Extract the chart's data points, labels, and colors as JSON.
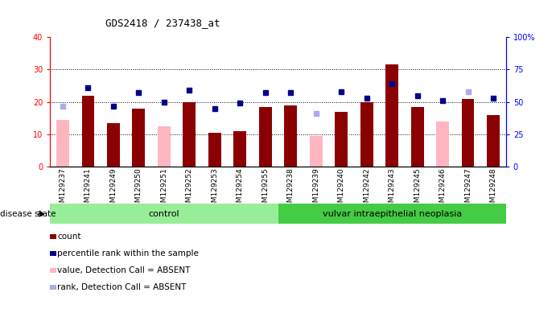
{
  "title": "GDS2418 / 237438_at",
  "samples": [
    "GSM129237",
    "GSM129241",
    "GSM129249",
    "GSM129250",
    "GSM129251",
    "GSM129252",
    "GSM129253",
    "GSM129254",
    "GSM129255",
    "GSM129238",
    "GSM129239",
    "GSM129240",
    "GSM129242",
    "GSM129243",
    "GSM129245",
    "GSM129246",
    "GSM129247",
    "GSM129248"
  ],
  "count_values": [
    0,
    22,
    13.5,
    18,
    0,
    20,
    10.5,
    11,
    18.5,
    19,
    0,
    17,
    20,
    31.5,
    18.5,
    0,
    21,
    16
  ],
  "absent_value": [
    14.5,
    0,
    0,
    0,
    12.5,
    0,
    0,
    0,
    0,
    0,
    9.5,
    0,
    0,
    0,
    0,
    14.0,
    0,
    0
  ],
  "percentile_values": [
    48,
    61,
    47,
    57,
    50,
    59,
    45,
    49,
    57,
    57,
    0,
    58,
    53,
    64,
    55,
    51,
    59,
    53
  ],
  "absent_rank": [
    47,
    0,
    0,
    0,
    0,
    0,
    0,
    0,
    0,
    0,
    41,
    0,
    0,
    0,
    0,
    0,
    58,
    0
  ],
  "count_is_absent": [
    true,
    false,
    false,
    false,
    true,
    false,
    false,
    false,
    false,
    false,
    true,
    false,
    false,
    false,
    false,
    true,
    false,
    false
  ],
  "pct_is_absent": [
    true,
    false,
    false,
    false,
    false,
    false,
    false,
    false,
    false,
    false,
    true,
    false,
    false,
    false,
    false,
    false,
    true,
    false
  ],
  "control_count": 9,
  "disease_count": 9,
  "group_labels": [
    "control",
    "vulvar intraepithelial neoplasia"
  ],
  "ylim_left": [
    0,
    40
  ],
  "ylim_right": [
    0,
    100
  ],
  "yticks_left": [
    0,
    10,
    20,
    30,
    40
  ],
  "yticks_right": [
    0,
    25,
    50,
    75,
    100
  ],
  "bar_color_dark_red": "#8B0000",
  "bar_color_pink": "#FFB6C1",
  "dot_color_dark_blue": "#00008B",
  "dot_color_light_blue": "#AAAAEE",
  "control_bg": "#98EE98",
  "disease_bg": "#44CC44"
}
